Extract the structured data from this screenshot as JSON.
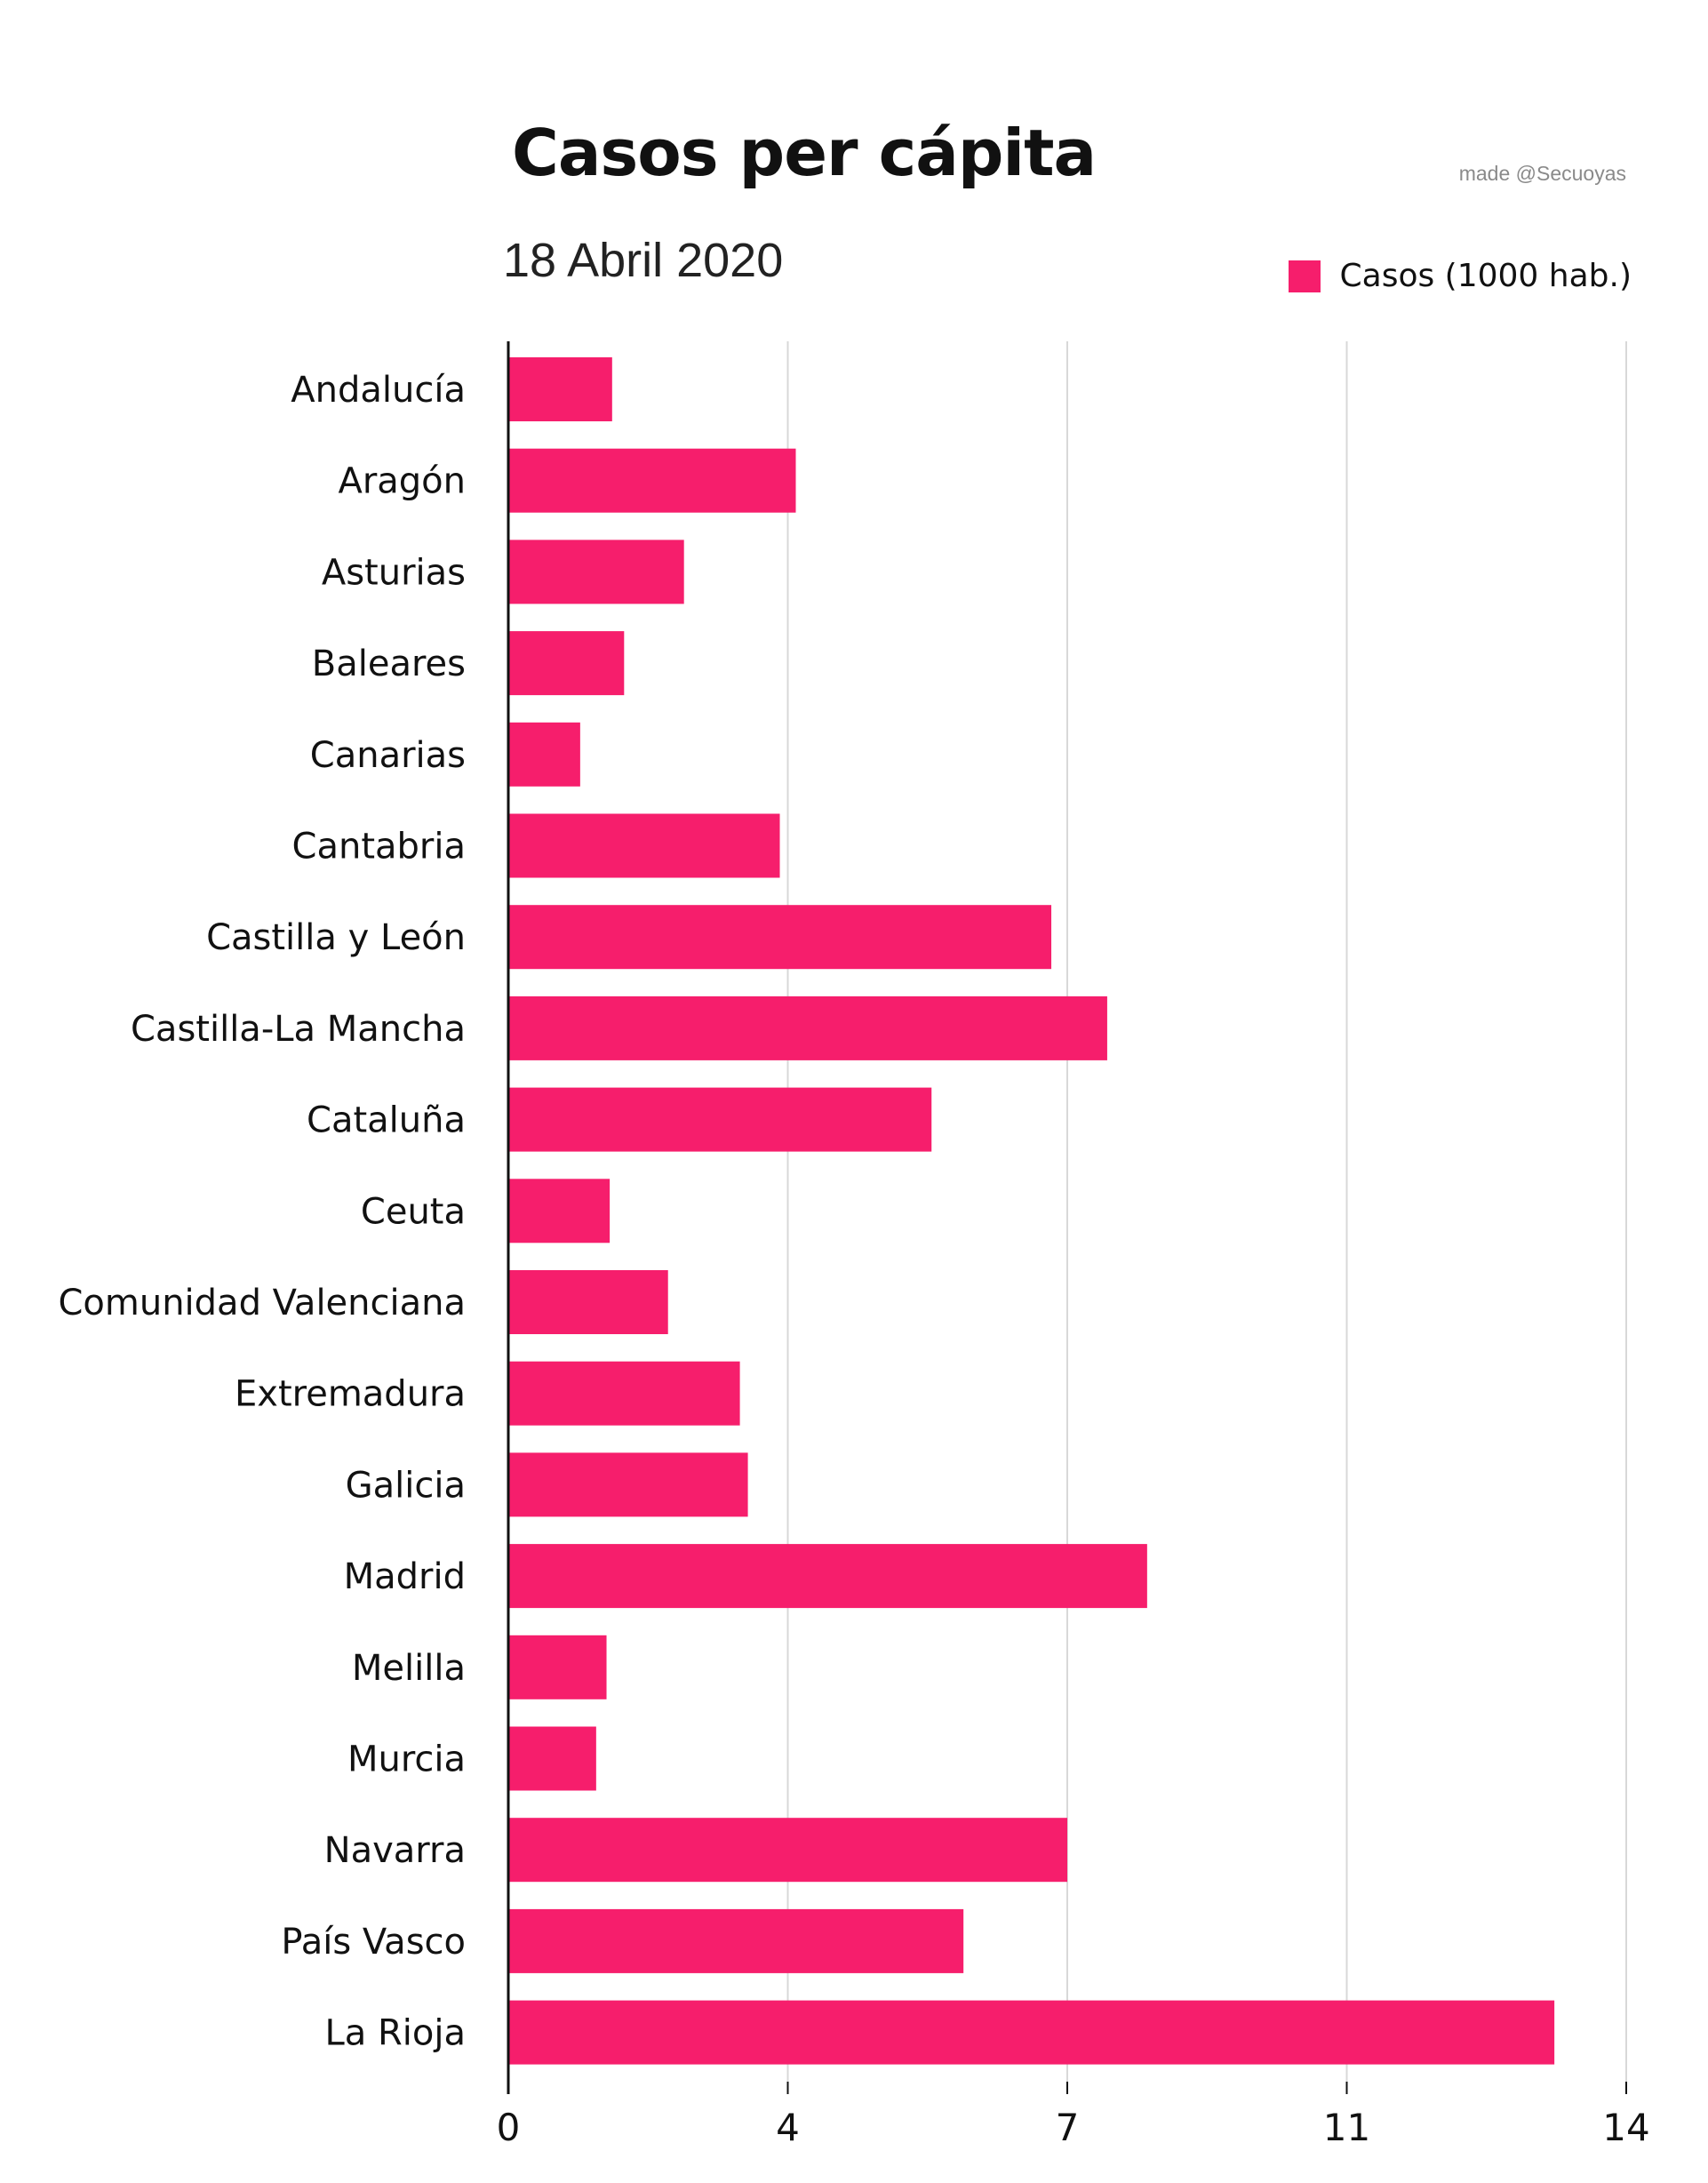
{
  "header": {
    "title": "Casos per cápita",
    "subtitle": "18 Abril 2020",
    "credit": "made @Secuoyas"
  },
  "colors": {
    "bar": "#f61e6c",
    "grid": "#d8d8d8",
    "axis": "#111111",
    "text": "#111111"
  },
  "chart_data": {
    "type": "bar",
    "orientation": "horizontal",
    "title": "Casos per cápita",
    "subtitle": "18 Abril 2020",
    "legend_position": "top-right",
    "grid": true,
    "categories": [
      "Andalucía",
      "Aragón",
      "Asturias",
      "Baleares",
      "Canarias",
      "Cantabria",
      "Castilla y León",
      "Castilla-La Mancha",
      "Cataluña",
      "Ceuta",
      "Comunidad Valenciana",
      "Extremadura",
      "Galicia",
      "Madrid",
      "Melilla",
      "Murcia",
      "Navarra",
      "País Vasco",
      "La Rioja"
    ],
    "series": [
      {
        "name": "Casos (1000 hab.)",
        "values": [
          1.3,
          3.6,
          2.2,
          1.45,
          0.9,
          3.4,
          6.8,
          7.5,
          5.3,
          1.27,
          2.0,
          2.9,
          3.0,
          8.0,
          1.23,
          1.1,
          7.0,
          5.7,
          13.1
        ]
      }
    ],
    "xlim": [
      0,
      14
    ],
    "xticks": [
      {
        "value": 0,
        "label": "0"
      },
      {
        "value": 3.5,
        "label": "4"
      },
      {
        "value": 7,
        "label": "7"
      },
      {
        "value": 10.5,
        "label": "11"
      },
      {
        "value": 14,
        "label": "14"
      }
    ]
  }
}
